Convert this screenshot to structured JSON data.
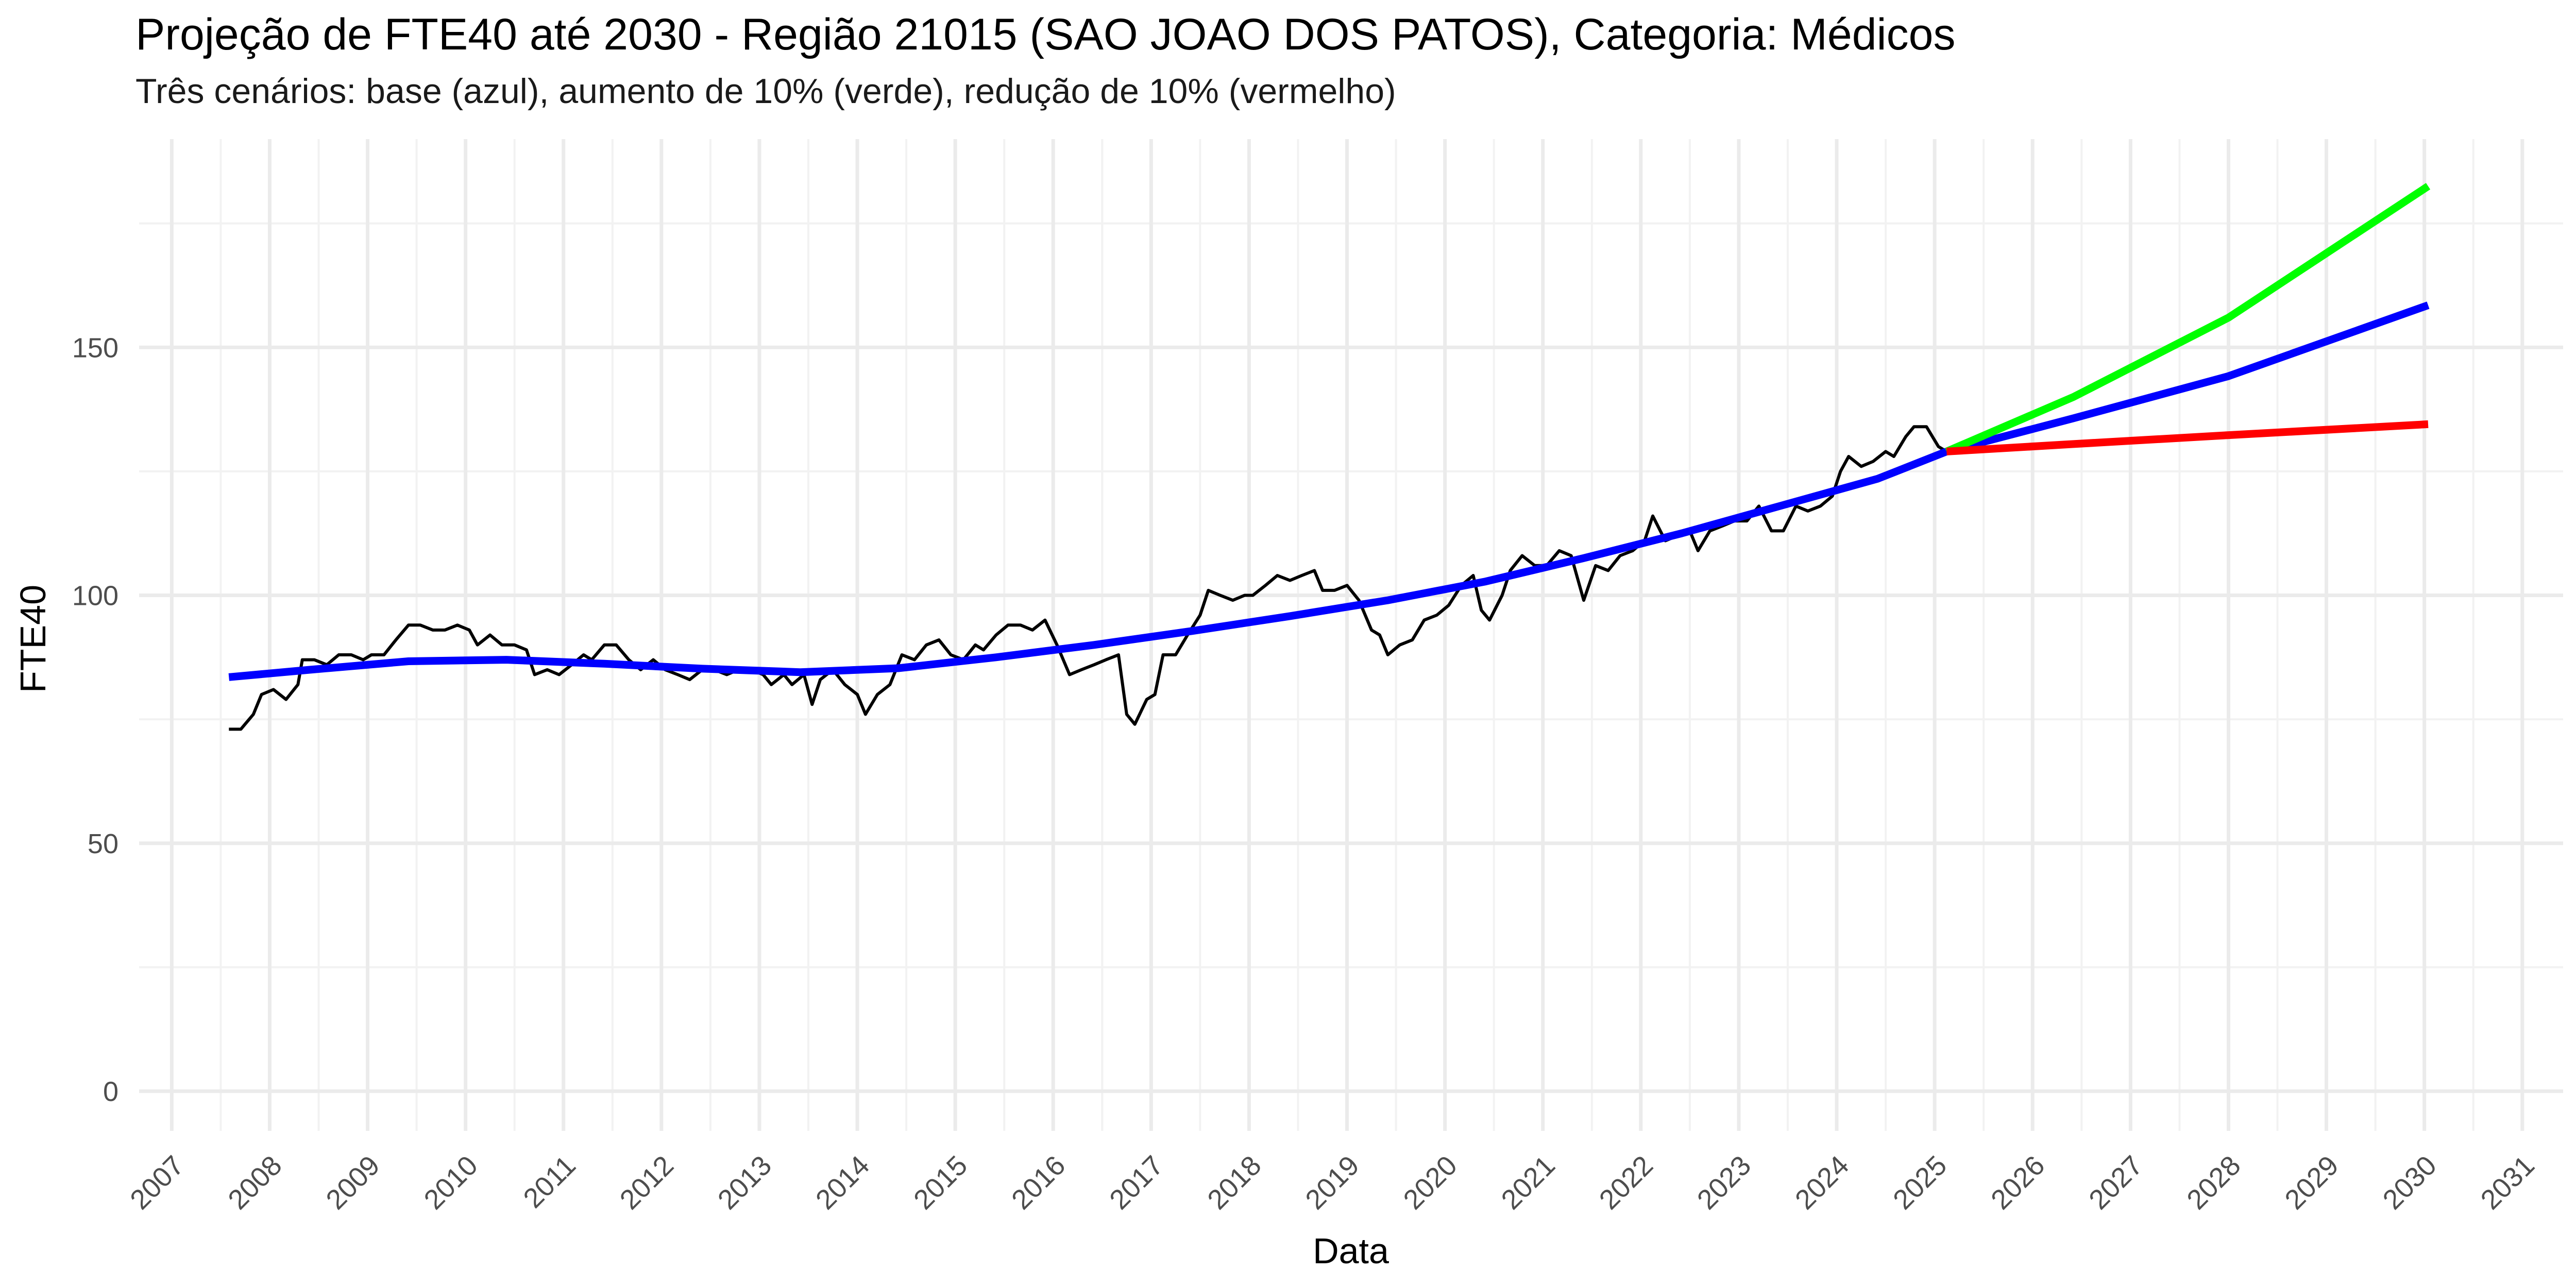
{
  "chart_data": {
    "type": "line",
    "title": "Projeção de FTE40 até 2030 - Região 21015 (SAO JOAO DOS PATOS), Categoria: Médicos",
    "subtitle": "Três cenários: base (azul), aumento de 10% (verde), redução de 10% (vermelho)",
    "xlabel": "Data",
    "ylabel": "FTE40",
    "xlim": [
      "2006-09-01",
      "2031-06-01"
    ],
    "ylim": [
      -8,
      192
    ],
    "x_ticks": [
      "2007",
      "2008",
      "2009",
      "2010",
      "2011",
      "2012",
      "2013",
      "2014",
      "2015",
      "2016",
      "2017",
      "2018",
      "2019",
      "2020",
      "2021",
      "2022",
      "2023",
      "2024",
      "2025",
      "2026",
      "2027",
      "2028",
      "2029",
      "2030",
      "2031"
    ],
    "y_ticks": [
      0,
      50,
      100,
      150
    ],
    "grid": true,
    "legend": "none",
    "series": [
      {
        "color": "#000000",
        "points": [
          [
            "2007-08-01",
            73
          ],
          [
            "2007-09-15",
            73
          ],
          [
            "2007-11-01",
            76
          ],
          [
            "2007-12-01",
            80
          ],
          [
            "2008-01-15",
            81
          ],
          [
            "2008-03-01",
            79
          ],
          [
            "2008-04-15",
            82
          ],
          [
            "2008-05-01",
            87
          ],
          [
            "2008-06-15",
            87
          ],
          [
            "2008-08-01",
            86
          ],
          [
            "2008-09-15",
            88
          ],
          [
            "2008-11-01",
            88
          ],
          [
            "2008-12-15",
            87
          ],
          [
            "2009-01-15",
            88
          ],
          [
            "2009-03-01",
            88
          ],
          [
            "2009-04-15",
            91
          ],
          [
            "2009-06-01",
            94
          ],
          [
            "2009-07-15",
            94
          ],
          [
            "2009-09-01",
            93
          ],
          [
            "2009-10-15",
            93
          ],
          [
            "2009-12-01",
            94
          ],
          [
            "2010-01-15",
            93
          ],
          [
            "2010-02-15",
            90
          ],
          [
            "2010-04-01",
            92
          ],
          [
            "2010-05-15",
            90
          ],
          [
            "2010-07-01",
            90
          ],
          [
            "2010-08-15",
            89
          ],
          [
            "2010-09-15",
            84
          ],
          [
            "2010-11-01",
            85
          ],
          [
            "2010-12-15",
            84
          ],
          [
            "2011-02-01",
            86
          ],
          [
            "2011-03-15",
            88
          ],
          [
            "2011-04-15",
            87
          ],
          [
            "2011-06-01",
            90
          ],
          [
            "2011-07-15",
            90
          ],
          [
            "2011-09-01",
            87
          ],
          [
            "2011-10-15",
            85
          ],
          [
            "2011-12-01",
            87
          ],
          [
            "2012-01-15",
            85
          ],
          [
            "2012-03-01",
            84
          ],
          [
            "2012-04-15",
            83
          ],
          [
            "2012-06-01",
            85
          ],
          [
            "2012-07-15",
            85
          ],
          [
            "2012-09-01",
            84
          ],
          [
            "2012-10-15",
            85
          ],
          [
            "2012-12-01",
            85
          ],
          [
            "2013-01-15",
            84
          ],
          [
            "2013-02-15",
            82
          ],
          [
            "2013-04-01",
            84
          ],
          [
            "2013-05-01",
            82
          ],
          [
            "2013-06-15",
            84
          ],
          [
            "2013-07-15",
            78
          ],
          [
            "2013-08-15",
            83
          ],
          [
            "2013-10-01",
            85
          ],
          [
            "2013-11-15",
            82
          ],
          [
            "2014-01-01",
            80
          ],
          [
            "2014-02-01",
            76
          ],
          [
            "2014-03-15",
            80
          ],
          [
            "2014-05-01",
            82
          ],
          [
            "2014-06-15",
            88
          ],
          [
            "2014-08-01",
            87
          ],
          [
            "2014-09-15",
            90
          ],
          [
            "2014-11-01",
            91
          ],
          [
            "2014-12-15",
            88
          ],
          [
            "2015-02-01",
            87
          ],
          [
            "2015-03-15",
            90
          ],
          [
            "2015-04-15",
            89
          ],
          [
            "2015-06-01",
            92
          ],
          [
            "2015-07-15",
            94
          ],
          [
            "2015-09-01",
            94
          ],
          [
            "2015-10-15",
            93
          ],
          [
            "2015-12-01",
            95
          ],
          [
            "2016-01-15",
            90
          ],
          [
            "2016-03-01",
            84
          ],
          [
            "2016-04-15",
            85
          ],
          [
            "2016-06-01",
            86
          ],
          [
            "2016-07-15",
            87
          ],
          [
            "2016-09-01",
            88
          ],
          [
            "2016-10-01",
            76
          ],
          [
            "2016-11-01",
            74
          ],
          [
            "2016-12-15",
            79
          ],
          [
            "2017-01-15",
            80
          ],
          [
            "2017-02-15",
            88
          ],
          [
            "2017-04-01",
            88
          ],
          [
            "2017-05-15",
            92
          ],
          [
            "2017-07-01",
            96
          ],
          [
            "2017-08-01",
            101
          ],
          [
            "2017-09-15",
            100
          ],
          [
            "2017-11-01",
            99
          ],
          [
            "2017-12-15",
            100
          ],
          [
            "2018-01-15",
            100
          ],
          [
            "2018-03-01",
            102
          ],
          [
            "2018-04-15",
            104
          ],
          [
            "2018-06-01",
            103
          ],
          [
            "2018-07-15",
            104
          ],
          [
            "2018-09-01",
            105
          ],
          [
            "2018-10-01",
            101
          ],
          [
            "2018-11-15",
            101
          ],
          [
            "2019-01-01",
            102
          ],
          [
            "2019-02-15",
            99
          ],
          [
            "2019-04-01",
            93
          ],
          [
            "2019-05-01",
            92
          ],
          [
            "2019-06-01",
            88
          ],
          [
            "2019-07-15",
            90
          ],
          [
            "2019-09-01",
            91
          ],
          [
            "2019-10-15",
            95
          ],
          [
            "2019-12-01",
            96
          ],
          [
            "2020-01-15",
            98
          ],
          [
            "2020-03-01",
            102
          ],
          [
            "2020-04-15",
            104
          ],
          [
            "2020-05-15",
            97
          ],
          [
            "2020-06-15",
            95
          ],
          [
            "2020-08-01",
            100
          ],
          [
            "2020-09-01",
            105
          ],
          [
            "2020-10-15",
            108
          ],
          [
            "2020-12-01",
            106
          ],
          [
            "2021-01-15",
            106
          ],
          [
            "2021-03-01",
            109
          ],
          [
            "2021-04-15",
            108
          ],
          [
            "2021-06-01",
            99
          ],
          [
            "2021-07-15",
            106
          ],
          [
            "2021-09-01",
            105
          ],
          [
            "2021-10-15",
            108
          ],
          [
            "2021-12-01",
            109
          ],
          [
            "2022-01-15",
            111
          ],
          [
            "2022-02-15",
            116
          ],
          [
            "2022-04-01",
            111
          ],
          [
            "2022-05-15",
            112
          ],
          [
            "2022-07-01",
            113
          ],
          [
            "2022-08-01",
            109
          ],
          [
            "2022-09-15",
            113
          ],
          [
            "2022-11-01",
            114
          ],
          [
            "2022-12-15",
            115
          ],
          [
            "2023-02-01",
            115
          ],
          [
            "2023-03-15",
            118
          ],
          [
            "2023-05-01",
            113
          ],
          [
            "2023-06-15",
            113
          ],
          [
            "2023-08-01",
            118
          ],
          [
            "2023-09-15",
            117
          ],
          [
            "2023-11-01",
            118
          ],
          [
            "2023-12-15",
            120
          ],
          [
            "2024-01-15",
            125
          ],
          [
            "2024-02-15",
            128
          ],
          [
            "2024-04-01",
            126
          ],
          [
            "2024-05-15",
            127
          ],
          [
            "2024-07-01",
            129
          ],
          [
            "2024-08-01",
            128
          ],
          [
            "2024-09-15",
            132
          ],
          [
            "2024-10-15",
            134
          ],
          [
            "2024-12-01",
            134
          ],
          [
            "2025-01-15",
            130
          ],
          [
            "2025-02-15",
            129
          ],
          [
            "2025-04-01",
            130
          ]
        ]
      },
      {
        "color": "#0000ff",
        "points": [
          [
            "2007-08-01",
            83.5
          ],
          [
            "2008-06-01",
            85
          ],
          [
            "2009-06-01",
            86.7
          ],
          [
            "2010-06-01",
            87
          ],
          [
            "2011-06-01",
            86.2
          ],
          [
            "2012-06-01",
            85.2
          ],
          [
            "2013-06-01",
            84.5
          ],
          [
            "2014-06-01",
            85.3
          ],
          [
            "2015-06-01",
            87.5
          ],
          [
            "2016-06-01",
            90
          ],
          [
            "2017-06-01",
            92.8
          ],
          [
            "2018-06-01",
            95.8
          ],
          [
            "2019-06-01",
            99
          ],
          [
            "2020-06-01",
            102.8
          ],
          [
            "2021-06-01",
            107.5
          ],
          [
            "2022-06-01",
            112.5
          ],
          [
            "2023-06-01",
            118
          ],
          [
            "2024-06-01",
            123.5
          ],
          [
            "2025-02-15",
            129
          ]
        ]
      },
      {
        "color": "#0000ff",
        "points": [
          [
            "2025-02-15",
            129
          ],
          [
            "2026-06-01",
            135.7
          ],
          [
            "2028-01-01",
            144.2
          ],
          [
            "2030-01-15",
            158.5
          ]
        ]
      },
      {
        "color": "#00ff00",
        "points": [
          [
            "2025-02-15",
            129
          ],
          [
            "2026-06-01",
            140
          ],
          [
            "2028-01-01",
            156
          ],
          [
            "2030-01-15",
            182.5
          ]
        ]
      },
      {
        "color": "#ff0000",
        "points": [
          [
            "2025-02-15",
            129
          ],
          [
            "2026-06-01",
            130.5
          ],
          [
            "2028-01-01",
            132.3
          ],
          [
            "2030-01-15",
            134.5
          ]
        ]
      }
    ]
  }
}
